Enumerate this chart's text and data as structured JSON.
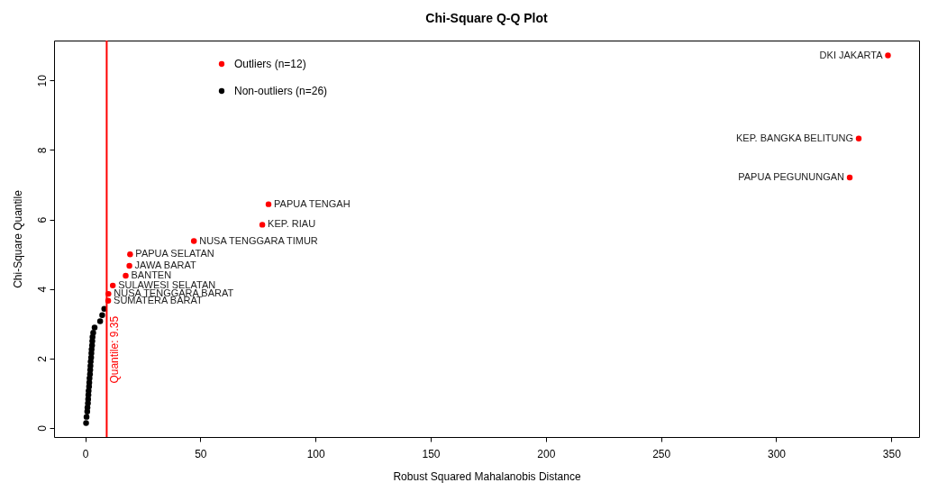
{
  "chart_data": {
    "type": "scatter",
    "title": "Chi-Square Q-Q Plot",
    "xlabel": "Robust Squared Mahalanobis Distance",
    "ylabel": "Chi-Square Quantile",
    "xlim": [
      -13.5,
      362
    ],
    "ylim": [
      -0.26,
      11.15
    ],
    "xticks": [
      0,
      50,
      100,
      150,
      200,
      250,
      300,
      350
    ],
    "yticks": [
      0,
      2,
      4,
      6,
      8,
      10
    ],
    "grid": false,
    "legend": "top left",
    "marker": "circle",
    "series": [
      {
        "name": "Outliers (n=12)",
        "color": "#ff0000",
        "x": [
          348.5,
          335.8,
          331.9,
          79.6,
          76.9,
          47.2,
          19.5,
          19.2,
          17.6,
          12.0,
          10.1,
          10.0
        ],
        "values": [
          10.72,
          8.33,
          7.21,
          6.44,
          5.85,
          5.38,
          5.0,
          4.67,
          4.38,
          4.1,
          3.86,
          3.66
        ]
      },
      {
        "name": "Non-outliers (n=26)",
        "color": "#000000",
        "x": [
          8.3,
          7.4,
          6.5,
          4.1,
          3.5,
          3.2,
          3.1,
          3.0,
          2.8,
          2.7,
          2.6,
          2.4,
          2.3,
          2.2,
          2.1,
          1.9,
          1.8,
          1.7,
          1.5,
          1.4,
          1.3,
          1.2,
          1.0,
          0.9,
          0.6,
          0.4
        ],
        "values": [
          3.43,
          3.25,
          3.07,
          2.89,
          2.74,
          2.62,
          2.5,
          2.38,
          2.26,
          2.15,
          2.03,
          1.91,
          1.79,
          1.67,
          1.55,
          1.43,
          1.31,
          1.19,
          1.07,
          0.95,
          0.83,
          0.71,
          0.59,
          0.47,
          0.32,
          0.14
        ]
      }
    ],
    "ref_lines": [
      {
        "axis": "x",
        "value": 9.35,
        "label": "Quantile: 9.35",
        "color": "#ff0000"
      }
    ],
    "annotations": [
      {
        "text": "DKI JAKARTA",
        "x": 348.5,
        "y": 10.72
      },
      {
        "text": "KEP. BANGKA BELITUNG",
        "x": 335.8,
        "y": 8.33
      },
      {
        "text": "PAPUA PEGUNUNGAN",
        "x": 331.9,
        "y": 7.21
      },
      {
        "text": "PAPUA TENGAH",
        "x": 79.6,
        "y": 6.44
      },
      {
        "text": "KEP. RIAU",
        "x": 76.9,
        "y": 5.85
      },
      {
        "text": "NUSA TENGGARA TIMUR",
        "x": 47.2,
        "y": 5.38
      },
      {
        "text": "PAPUA SELATAN",
        "x": 19.5,
        "y": 5.0
      },
      {
        "text": "JAWA BARAT",
        "x": 19.2,
        "y": 4.67
      },
      {
        "text": "BANTEN",
        "x": 17.6,
        "y": 4.38
      },
      {
        "text": "SULAWESI SELATAN",
        "x": 12.0,
        "y": 4.1
      },
      {
        "text": "NUSA TENGGARA BARAT",
        "x": 10.1,
        "y": 3.86
      },
      {
        "text": "SUMATERA BARAT",
        "x": 10.0,
        "y": 3.66
      }
    ]
  }
}
